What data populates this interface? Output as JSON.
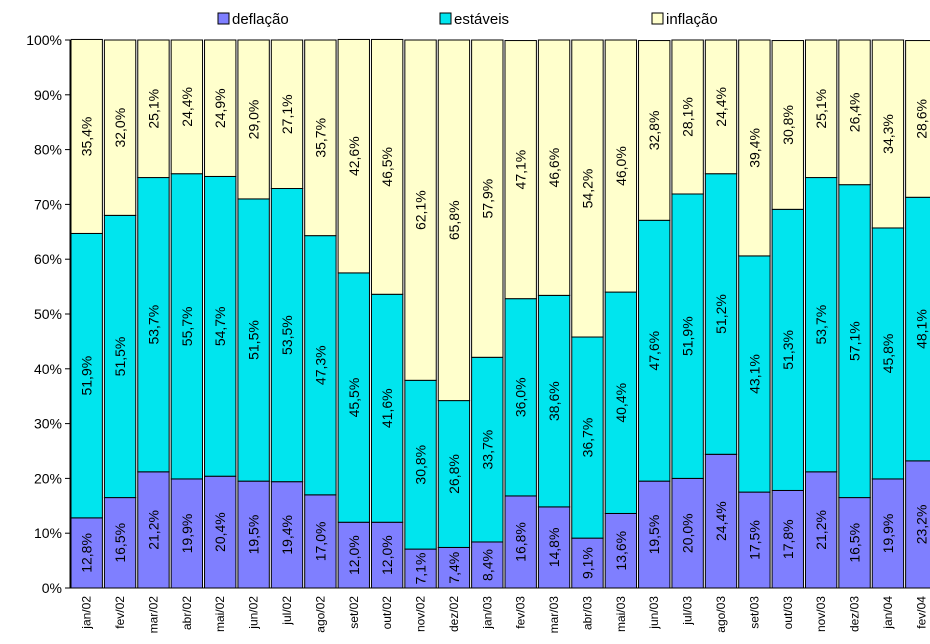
{
  "chart_data": {
    "type": "bar",
    "stacked": true,
    "percent": true,
    "categories": [
      "jan/02",
      "fev/02",
      "mar/02",
      "abr/02",
      "mai/02",
      "jun/02",
      "jul/02",
      "ago/02",
      "set/02",
      "out/02",
      "nov/02",
      "dez/02",
      "jan/03",
      "fev/03",
      "mar/03",
      "abr/03",
      "mai/03",
      "jun/03",
      "jul/03",
      "ago/03",
      "set/03",
      "out/03",
      "nov/03",
      "dez/03",
      "jan/04",
      "fev/04"
    ],
    "series": [
      {
        "name": "deflação",
        "color": "#7f7fff",
        "values": [
          12.8,
          16.5,
          21.2,
          19.9,
          20.4,
          19.5,
          19.4,
          17.0,
          12.0,
          12.0,
          7.1,
          7.4,
          8.4,
          16.8,
          14.8,
          9.1,
          13.6,
          19.5,
          20.0,
          24.4,
          17.5,
          17.8,
          21.2,
          16.5,
          19.9,
          23.2
        ],
        "labels": [
          "12,8%",
          "16,5%",
          "21,2%",
          "19,9%",
          "20,4%",
          "19,5%",
          "19,4%",
          "17,0%",
          "12,0%",
          "12,0%",
          "7,1%",
          "7,4%",
          "8,4%",
          "16,8%",
          "14,8%",
          "9,1%",
          "13,6%",
          "19,5%",
          "20,0%",
          "24,4%",
          "17,5%",
          "17,8%",
          "21,2%",
          "16,5%",
          "19,9%",
          "23,2%"
        ]
      },
      {
        "name": "estáveis",
        "color": "#00e5ee",
        "values": [
          51.9,
          51.5,
          53.7,
          55.7,
          54.7,
          51.5,
          53.5,
          47.3,
          45.5,
          41.6,
          30.8,
          26.8,
          33.7,
          36.0,
          38.6,
          36.7,
          40.4,
          47.6,
          51.9,
          51.2,
          43.1,
          51.3,
          53.7,
          57.1,
          45.8,
          48.1
        ],
        "labels": [
          "51,9%",
          "51,5%",
          "53,7%",
          "55,7%",
          "54,7%",
          "51,5%",
          "53,5%",
          "47,3%",
          "45,5%",
          "41,6%",
          "30,8%",
          "26,8%",
          "33,7%",
          "36,0%",
          "38,6%",
          "36,7%",
          "40,4%",
          "47,6%",
          "51,9%",
          "51,2%",
          "43,1%",
          "51,3%",
          "53,7%",
          "57,1%",
          "45,8%",
          "48,1%"
        ]
      },
      {
        "name": "inflação",
        "color": "#ffffcc",
        "values": [
          35.4,
          32.0,
          25.1,
          24.4,
          24.9,
          29.0,
          27.1,
          35.7,
          42.6,
          46.5,
          62.1,
          65.8,
          57.9,
          47.1,
          46.6,
          54.2,
          46.0,
          32.8,
          28.1,
          24.4,
          39.4,
          30.8,
          25.1,
          26.4,
          34.3,
          28.6
        ],
        "labels": [
          "35,4%",
          "32,0%",
          "25,1%",
          "24,4%",
          "24,9%",
          "29,0%",
          "27,1%",
          "35,7%",
          "42,6%",
          "46,5%",
          "62,1%",
          "65,8%",
          "57,9%",
          "47,1%",
          "46,6%",
          "54,2%",
          "46,0%",
          "32,8%",
          "28,1%",
          "24,4%",
          "39,4%",
          "30,8%",
          "25,1%",
          "26,4%",
          "34,3%",
          "28,6%"
        ]
      }
    ],
    "ylim": [
      0,
      100
    ],
    "yticks": [
      "0%",
      "10%",
      "20%",
      "30%",
      "40%",
      "50%",
      "60%",
      "70%",
      "80%",
      "90%",
      "100%"
    ],
    "legend_position": "top",
    "grid": false
  }
}
